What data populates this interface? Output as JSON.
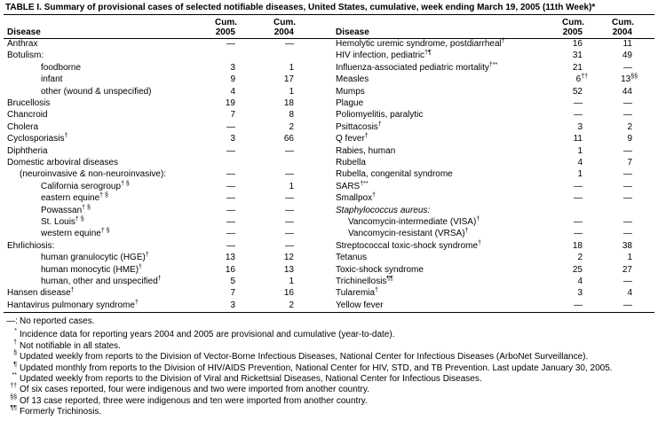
{
  "title": "TABLE I. Summary of provisional cases of selected notifiable diseases, United States, cumulative, week ending March 19, 2005 (11th Week)*",
  "header": {
    "disease": "Disease",
    "cum": "Cum.",
    "year2005": "2005",
    "year2004": "2004"
  },
  "table": {
    "left_rows": [
      {
        "name": "Anthrax",
        "cum2005": "—",
        "cum2004": "—"
      },
      {
        "name": "Botulism:",
        "children": [
          {
            "name": "foodborne",
            "cum2005": 3,
            "cum2004": 1
          },
          {
            "name": "infant",
            "cum2005": 9,
            "cum2004": 17
          },
          {
            "name": "other (wound & unspecified)",
            "cum2005": 4,
            "cum2004": 1
          }
        ]
      },
      {
        "name": "Brucellosis",
        "cum2005": 19,
        "cum2004": 18
      },
      {
        "name": "Chancroid",
        "cum2005": 7,
        "cum2004": 8
      },
      {
        "name": "Cholera",
        "cum2005": "—",
        "cum2004": 2
      },
      {
        "name": "Cyclosporiasis",
        "sup": "†",
        "cum2005": 3,
        "cum2004": 66
      },
      {
        "name": "Diphtheria",
        "cum2005": "—",
        "cum2004": "—"
      },
      {
        "name": "Domestic arboviral diseases",
        "name_continued": "(neuroinvasive & non-neuroinvasive):",
        "cum2005": "—",
        "cum2004": "—",
        "children": [
          {
            "name": "California serogroup",
            "sup": "† §",
            "cum2005": "—",
            "cum2004": 1
          },
          {
            "name": "eastern equine",
            "sup": "† §",
            "cum2005": "—",
            "cum2004": "—"
          },
          {
            "name": "Powassan",
            "sup": "† §",
            "cum2005": "—",
            "cum2004": "—"
          },
          {
            "name": "St. Louis",
            "sup": "† §",
            "cum2005": "—",
            "cum2004": "—"
          },
          {
            "name": "western equine",
            "sup": "† §",
            "cum2005": "—",
            "cum2004": "—"
          }
        ]
      },
      {
        "name": "Ehrlichiosis:",
        "cum2005": "—",
        "cum2004": "—",
        "children": [
          {
            "name": "human granulocytic (HGE)",
            "sup": "†",
            "cum2005": 13,
            "cum2004": 12
          },
          {
            "name": "human monocytic (HME)",
            "sup": "†",
            "cum2005": 16,
            "cum2004": 13
          },
          {
            "name": "human, other and unspecified",
            "sup": "†",
            "cum2005": 5,
            "cum2004": 1
          }
        ]
      },
      {
        "name": "Hansen disease",
        "sup": "†",
        "cum2005": 7,
        "cum2004": 16
      },
      {
        "name": "Hantavirus pulmonary syndrome",
        "sup": "†",
        "cum2005": 3,
        "cum2004": 2
      }
    ],
    "right_rows": [
      {
        "name": "Hemolytic uremic syndrome, postdiarrheal",
        "sup": "†",
        "cum2005": 16,
        "cum2004": 11
      },
      {
        "name": "HIV infection, pediatric",
        "sup": "†¶",
        "cum2005": 31,
        "cum2004": 49
      },
      {
        "name": "Influenza-associated pediatric mortality",
        "sup": "†**",
        "cum2005": 21,
        "cum2004": "—"
      },
      {
        "name": "Measles",
        "cum2005": {
          "value": 6,
          "sup": "††"
        },
        "cum2004": {
          "value": 13,
          "sup": "§§"
        }
      },
      {
        "name": "Mumps",
        "cum2005": 52,
        "cum2004": 44
      },
      {
        "name": "Plague",
        "cum2005": "—",
        "cum2004": "—"
      },
      {
        "name": "Poliomyelitis, paralytic",
        "cum2005": "—",
        "cum2004": "—"
      },
      {
        "name": "Psittacosis",
        "sup": "†",
        "cum2005": 3,
        "cum2004": 2
      },
      {
        "name": "Q fever",
        "sup": "†",
        "cum2005": 11,
        "cum2004": 9
      },
      {
        "name": "Rabies, human",
        "cum2005": 1,
        "cum2004": "—"
      },
      {
        "name": "Rubella",
        "cum2005": 4,
        "cum2004": 7
      },
      {
        "name": "Rubella, congenital syndrome",
        "cum2005": 1,
        "cum2004": "—"
      },
      {
        "name": "SARS",
        "sup": "†**",
        "cum2005": "—",
        "cum2004": "—"
      },
      {
        "name": "Smallpox",
        "sup": "†",
        "cum2005": "—",
        "cum2004": "—"
      },
      {
        "name": "Staphylococcus aureus:",
        "italic": true,
        "children": [
          {
            "name": "Vancomycin-intermediate (VISA)",
            "sup": "†",
            "cum2005": "—",
            "cum2004": "—"
          },
          {
            "name": "Vancomycin-resistant (VRSA)",
            "sup": "†",
            "cum2005": "—",
            "cum2004": "—"
          }
        ]
      },
      {
        "name": "Streptococcal toxic-shock syndrome",
        "sup": "†",
        "cum2005": 18,
        "cum2004": 38
      },
      {
        "name": "Tetanus",
        "cum2005": 2,
        "cum2004": 1
      },
      {
        "name": "Toxic-shock syndrome",
        "cum2005": 25,
        "cum2004": 27
      },
      {
        "name": "Trichinellosis",
        "sup": "¶¶",
        "cum2005": 4,
        "cum2004": "—"
      },
      {
        "name": "Tularemia",
        "sup": "†",
        "cum2005": 3,
        "cum2004": 4
      },
      {
        "name": "Yellow fever",
        "cum2005": "—",
        "cum2004": "—"
      }
    ]
  },
  "footnotes": [
    {
      "mark": "—:",
      "text": "No reported cases."
    },
    {
      "mark": "*",
      "text": "Incidence data for reporting years 2004 and 2005 are provisional and cumulative (year-to-date)."
    },
    {
      "mark": "†",
      "text": "Not notifiable in all states."
    },
    {
      "mark": "§",
      "text": "Updated weekly from reports to the Division of Vector-Borne Infectious Diseases, National Center for Infectious Diseases (ArboNet Surveillance)."
    },
    {
      "mark": "¶",
      "text": "Updated monthly from reports to the Division of HIV/AIDS Prevention, National Center for HIV, STD, and TB Prevention. Last update January 30, 2005."
    },
    {
      "mark": "**",
      "text": "Updated weekly from reports to the Division of Viral and Rickettsial Diseases, National Center for Infectious Diseases."
    },
    {
      "mark": "††",
      "text": "Of six cases reported, four were indigenous and two were imported from another country."
    },
    {
      "mark": "§§",
      "text": "Of 13 case reported, three were indigenous and ten were imported from another country."
    },
    {
      "mark": "¶¶",
      "text": "Formerly Trichinosis."
    }
  ]
}
